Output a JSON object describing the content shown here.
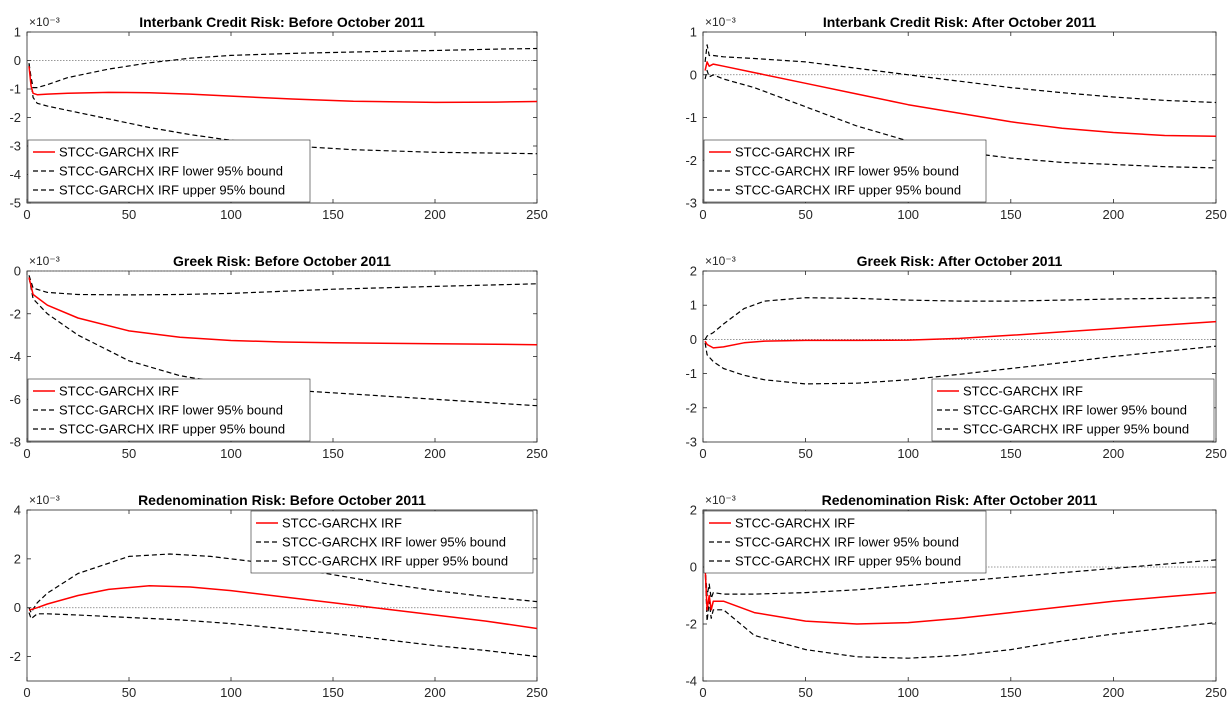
{
  "chart_data": [
    {
      "type": "line",
      "title": "Interbank Credit Risk: Before October 2011",
      "exponent_label": "×10⁻³",
      "xlim": [
        0,
        250
      ],
      "ylim": [
        -5,
        1
      ],
      "x_ticks": [
        0,
        50,
        100,
        150,
        200,
        250
      ],
      "y_ticks": [
        -5,
        -4,
        -3,
        -2,
        -1,
        0,
        1
      ],
      "legend_position": "bottom-left",
      "legend": [
        "STCC-GARCHX IRF",
        "STCC-GARCHX IRF lower 95% bound",
        "STCC-GARCHX IRF upper 95% bound"
      ],
      "zero_line": 0,
      "series": [
        {
          "name": "STCC-GARCHX IRF",
          "color": "#ff0000",
          "style": "solid",
          "x": [
            1,
            2,
            3,
            5,
            10,
            20,
            40,
            60,
            80,
            100,
            130,
            160,
            200,
            230,
            250
          ],
          "y": [
            -0.2,
            -0.9,
            -1.15,
            -1.2,
            -1.18,
            -1.15,
            -1.12,
            -1.13,
            -1.18,
            -1.25,
            -1.35,
            -1.43,
            -1.47,
            -1.46,
            -1.44
          ]
        },
        {
          "name": "STCC-GARCHX IRF lower 95% bound",
          "color": "#000000",
          "style": "dashed",
          "x": [
            1,
            2,
            3,
            5,
            10,
            20,
            40,
            60,
            80,
            100,
            130,
            160,
            200,
            230,
            250
          ],
          "y": [
            -0.1,
            -0.8,
            -1.3,
            -1.5,
            -1.6,
            -1.75,
            -2.05,
            -2.35,
            -2.6,
            -2.8,
            -3.0,
            -3.13,
            -3.22,
            -3.25,
            -3.27
          ]
        },
        {
          "name": "STCC-GARCHX IRF upper 95% bound",
          "color": "#000000",
          "style": "dashed",
          "x": [
            1,
            2,
            3,
            5,
            10,
            20,
            40,
            60,
            80,
            100,
            130,
            160,
            200,
            230,
            250
          ],
          "y": [
            -0.1,
            -0.6,
            -0.95,
            -0.95,
            -0.85,
            -0.6,
            -0.3,
            -0.08,
            0.08,
            0.18,
            0.25,
            0.3,
            0.35,
            0.4,
            0.42
          ]
        }
      ]
    },
    {
      "type": "line",
      "title": "Interbank Credit Risk: After October 2011",
      "exponent_label": "×10⁻³",
      "xlim": [
        0,
        250
      ],
      "ylim": [
        -3,
        1
      ],
      "x_ticks": [
        0,
        50,
        100,
        150,
        200,
        250
      ],
      "y_ticks": [
        -3,
        -2,
        -1,
        0,
        1
      ],
      "legend_position": "bottom-left",
      "legend": [
        "STCC-GARCHX IRF",
        "STCC-GARCHX IRF lower 95% bound",
        "STCC-GARCHX IRF upper 95% bound"
      ],
      "zero_line": 0,
      "series": [
        {
          "name": "STCC-GARCHX IRF",
          "color": "#ff0000",
          "style": "solid",
          "x": [
            1,
            2,
            3,
            5,
            10,
            25,
            50,
            75,
            100,
            125,
            150,
            175,
            200,
            225,
            250
          ],
          "y": [
            0.1,
            0.3,
            0.2,
            0.25,
            0.2,
            0.05,
            -0.2,
            -0.45,
            -0.7,
            -0.9,
            -1.1,
            -1.25,
            -1.35,
            -1.42,
            -1.44
          ]
        },
        {
          "name": "STCC-GARCHX IRF lower 95% bound",
          "color": "#000000",
          "style": "dashed",
          "x": [
            1,
            2,
            3,
            5,
            10,
            25,
            50,
            75,
            100,
            125,
            150,
            175,
            200,
            225,
            250
          ],
          "y": [
            -0.1,
            0.1,
            -0.05,
            0.0,
            -0.1,
            -0.3,
            -0.75,
            -1.2,
            -1.55,
            -1.8,
            -1.95,
            -2.05,
            -2.1,
            -2.15,
            -2.18
          ]
        },
        {
          "name": "STCC-GARCHX IRF upper 95% bound",
          "color": "#000000",
          "style": "dashed",
          "x": [
            1,
            2,
            3,
            5,
            10,
            25,
            50,
            75,
            100,
            125,
            150,
            175,
            200,
            225,
            250
          ],
          "y": [
            0.3,
            0.7,
            0.45,
            0.45,
            0.42,
            0.38,
            0.3,
            0.15,
            0.0,
            -0.15,
            -0.3,
            -0.42,
            -0.52,
            -0.6,
            -0.65
          ]
        }
      ]
    },
    {
      "type": "line",
      "title": "Greek Risk: Before October 2011",
      "exponent_label": "×10⁻³",
      "xlim": [
        0,
        250
      ],
      "ylim": [
        -8,
        0
      ],
      "x_ticks": [
        0,
        50,
        100,
        150,
        200,
        250
      ],
      "y_ticks": [
        -8,
        -6,
        -4,
        -2,
        0
      ],
      "legend_position": "bottom-left",
      "legend": [
        "STCC-GARCHX IRF",
        "STCC-GARCHX IRF lower 95% bound",
        "STCC-GARCHX IRF upper 95% bound"
      ],
      "zero_line": 0,
      "series": [
        {
          "name": "STCC-GARCHX IRF",
          "color": "#ff0000",
          "style": "solid",
          "x": [
            1,
            3,
            10,
            25,
            50,
            75,
            100,
            125,
            150,
            200,
            250
          ],
          "y": [
            -0.3,
            -1.1,
            -1.6,
            -2.2,
            -2.8,
            -3.1,
            -3.25,
            -3.32,
            -3.36,
            -3.4,
            -3.45
          ]
        },
        {
          "name": "STCC-GARCHX IRF lower 95% bound",
          "color": "#000000",
          "style": "dashed",
          "x": [
            1,
            3,
            10,
            25,
            50,
            75,
            100,
            125,
            150,
            200,
            250
          ],
          "y": [
            -0.3,
            -1.3,
            -2.0,
            -3.0,
            -4.2,
            -4.9,
            -5.3,
            -5.55,
            -5.7,
            -6.0,
            -6.3
          ]
        },
        {
          "name": "STCC-GARCHX IRF upper 95% bound",
          "color": "#000000",
          "style": "dashed",
          "x": [
            1,
            3,
            10,
            25,
            50,
            75,
            100,
            125,
            150,
            200,
            250
          ],
          "y": [
            -0.2,
            -0.8,
            -1.0,
            -1.1,
            -1.12,
            -1.1,
            -1.05,
            -0.95,
            -0.85,
            -0.72,
            -0.6
          ]
        }
      ]
    },
    {
      "type": "line",
      "title": "Greek Risk: After October 2011",
      "exponent_label": "×10⁻³",
      "xlim": [
        0,
        250
      ],
      "ylim": [
        -3,
        2
      ],
      "x_ticks": [
        0,
        50,
        100,
        150,
        200,
        250
      ],
      "y_ticks": [
        -3,
        -2,
        -1,
        0,
        1,
        2
      ],
      "legend_position": "bottom-right",
      "legend": [
        "STCC-GARCHX IRF",
        "STCC-GARCHX IRF lower 95% bound",
        "STCC-GARCHX IRF upper 95% bound"
      ],
      "zero_line": 0,
      "series": [
        {
          "name": "STCC-GARCHX IRF",
          "color": "#ff0000",
          "style": "solid",
          "x": [
            1,
            2,
            5,
            10,
            20,
            30,
            50,
            75,
            100,
            125,
            150,
            175,
            200,
            225,
            250
          ],
          "y": [
            -0.05,
            -0.15,
            -0.25,
            -0.22,
            -0.1,
            -0.05,
            -0.03,
            -0.03,
            -0.02,
            0.03,
            0.12,
            0.22,
            0.32,
            0.42,
            0.52
          ]
        },
        {
          "name": "STCC-GARCHX IRF lower 95% bound",
          "color": "#000000",
          "style": "dashed",
          "x": [
            1,
            2,
            5,
            10,
            20,
            30,
            50,
            75,
            100,
            125,
            150,
            175,
            200,
            225,
            250
          ],
          "y": [
            -0.1,
            -0.45,
            -0.65,
            -0.85,
            -1.05,
            -1.18,
            -1.3,
            -1.28,
            -1.18,
            -1.02,
            -0.85,
            -0.68,
            -0.5,
            -0.35,
            -0.2
          ]
        },
        {
          "name": "STCC-GARCHX IRF upper 95% bound",
          "color": "#000000",
          "style": "dashed",
          "x": [
            1,
            2,
            5,
            10,
            20,
            30,
            50,
            75,
            100,
            125,
            150,
            175,
            200,
            225,
            250
          ],
          "y": [
            0.0,
            0.1,
            0.2,
            0.45,
            0.9,
            1.12,
            1.22,
            1.2,
            1.15,
            1.12,
            1.12,
            1.15,
            1.18,
            1.2,
            1.22
          ]
        }
      ]
    },
    {
      "type": "line",
      "title": "Redenomination Risk: Before October 2011",
      "exponent_label": "×10⁻³",
      "xlim": [
        0,
        250
      ],
      "ylim": [
        -3,
        4
      ],
      "x_ticks": [
        0,
        50,
        100,
        150,
        200,
        250
      ],
      "y_ticks": [
        -2,
        0,
        2,
        4
      ],
      "legend_position": "top-right",
      "legend": [
        "STCC-GARCHX IRF",
        "STCC-GARCHX IRF lower 95% bound",
        "STCC-GARCHX IRF upper 95% bound"
      ],
      "zero_line": 0,
      "series": [
        {
          "name": "STCC-GARCHX IRF",
          "color": "#ff0000",
          "style": "solid",
          "x": [
            1,
            5,
            10,
            25,
            40,
            60,
            80,
            100,
            125,
            150,
            175,
            200,
            225,
            250
          ],
          "y": [
            -0.1,
            0.0,
            0.15,
            0.5,
            0.75,
            0.9,
            0.85,
            0.7,
            0.45,
            0.2,
            -0.05,
            -0.3,
            -0.55,
            -0.85
          ]
        },
        {
          "name": "STCC-GARCHX IRF lower 95% bound",
          "color": "#000000",
          "style": "dashed",
          "x": [
            1,
            2,
            5,
            10,
            25,
            50,
            75,
            100,
            125,
            150,
            175,
            200,
            225,
            250
          ],
          "y": [
            -0.2,
            -0.45,
            -0.25,
            -0.25,
            -0.3,
            -0.4,
            -0.5,
            -0.65,
            -0.85,
            -1.05,
            -1.3,
            -1.55,
            -1.75,
            -2.0
          ]
        },
        {
          "name": "STCC-GARCHX IRF upper 95% bound",
          "color": "#000000",
          "style": "dashed",
          "x": [
            1,
            2,
            5,
            10,
            25,
            50,
            70,
            90,
            110,
            130,
            150,
            175,
            200,
            225,
            250
          ],
          "y": [
            0.0,
            -0.2,
            0.2,
            0.6,
            1.4,
            2.1,
            2.2,
            2.1,
            1.9,
            1.65,
            1.35,
            1.0,
            0.7,
            0.45,
            0.25
          ]
        }
      ]
    },
    {
      "type": "line",
      "title": "Redenomination Risk: After October 2011",
      "exponent_label": "×10⁻³",
      "xlim": [
        0,
        250
      ],
      "ylim": [
        -4,
        2
      ],
      "x_ticks": [
        0,
        50,
        100,
        150,
        200,
        250
      ],
      "y_ticks": [
        -4,
        -2,
        0,
        2
      ],
      "legend_position": "top-left",
      "legend": [
        "STCC-GARCHX IRF",
        "STCC-GARCHX IRF lower 95% bound",
        "STCC-GARCHX IRF upper 95% bound"
      ],
      "zero_line": 0,
      "series": [
        {
          "name": "STCC-GARCHX IRF",
          "color": "#ff0000",
          "style": "solid",
          "x": [
            1,
            2,
            3,
            4,
            5,
            10,
            25,
            50,
            75,
            100,
            125,
            150,
            175,
            200,
            225,
            250
          ],
          "y": [
            0.0,
            -1.5,
            -1.0,
            -1.5,
            -1.2,
            -1.2,
            -1.6,
            -1.9,
            -2.0,
            -1.95,
            -1.8,
            -1.6,
            -1.4,
            -1.2,
            -1.05,
            -0.9
          ]
        },
        {
          "name": "STCC-GARCHX IRF lower 95% bound",
          "color": "#000000",
          "style": "dashed",
          "x": [
            1,
            2,
            3,
            4,
            5,
            10,
            25,
            50,
            75,
            100,
            125,
            150,
            175,
            200,
            225,
            250
          ],
          "y": [
            0.0,
            -1.9,
            -1.2,
            -1.8,
            -1.5,
            -1.5,
            -2.4,
            -2.9,
            -3.15,
            -3.2,
            -3.1,
            -2.9,
            -2.6,
            -2.35,
            -2.15,
            -1.95
          ]
        },
        {
          "name": "STCC-GARCHX IRF upper 95% bound",
          "color": "#000000",
          "style": "dashed",
          "x": [
            1,
            2,
            3,
            4,
            5,
            10,
            25,
            50,
            75,
            100,
            125,
            150,
            175,
            200,
            225,
            250
          ],
          "y": [
            0.0,
            -1.0,
            -0.6,
            -1.1,
            -0.9,
            -0.95,
            -0.95,
            -0.9,
            -0.8,
            -0.65,
            -0.5,
            -0.35,
            -0.2,
            -0.05,
            0.1,
            0.25
          ]
        }
      ]
    }
  ]
}
